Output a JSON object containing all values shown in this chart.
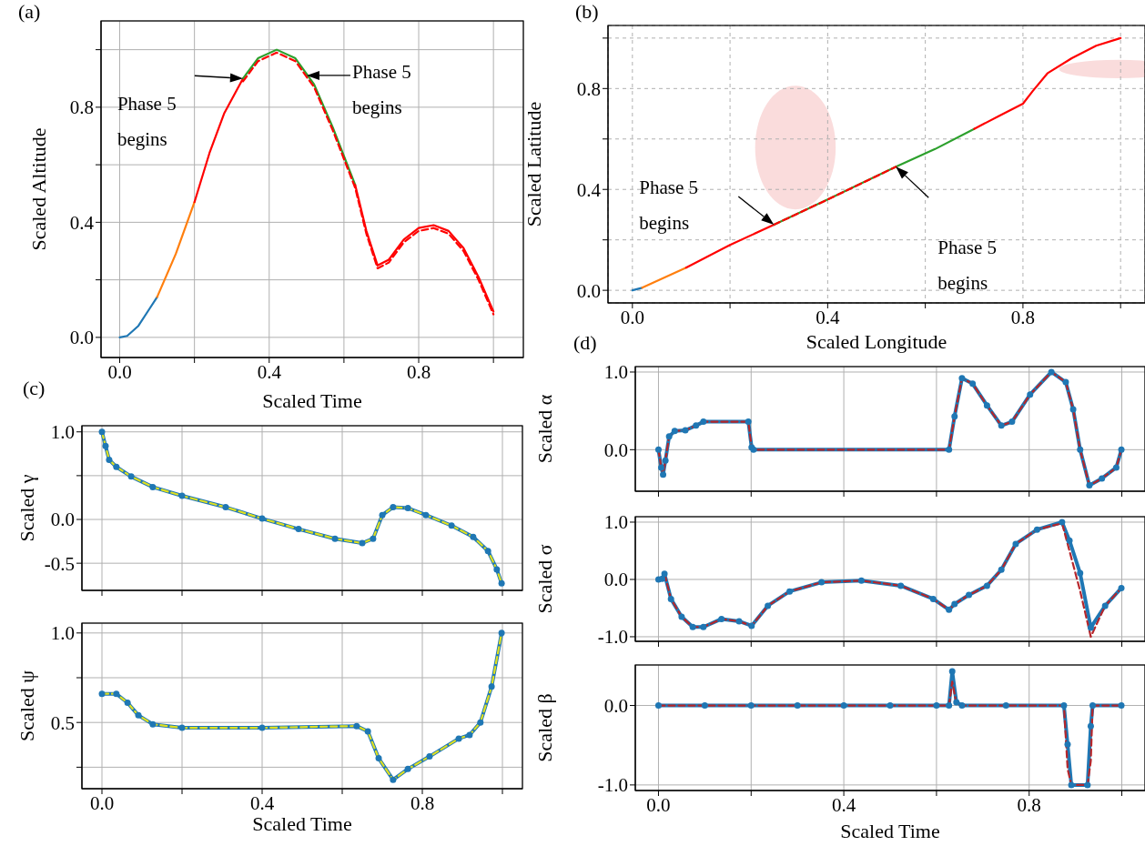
{
  "chart_data": [
    {
      "type": "line",
      "title": "(a)",
      "xlabel": "Scaled Time",
      "ylabel": "Scaled Altitude",
      "xlim": [
        -0.05,
        1.08
      ],
      "ylim": [
        -0.07,
        1.1
      ],
      "xticks": [
        {
          "value": 0,
          "label": "0.0"
        },
        {
          "value": 0.2,
          "label": null
        },
        {
          "value": 0.4,
          "label": "0.4"
        },
        {
          "value": 0.6,
          "label": null
        },
        {
          "value": 0.8,
          "label": "0.8"
        },
        {
          "value": 1,
          "label": null
        }
      ],
      "yticks": [
        {
          "value": 0,
          "label": "0.0"
        },
        {
          "value": 0.2,
          "label": null
        },
        {
          "value": 0.4,
          "label": "0.4"
        },
        {
          "value": 0.6,
          "label": null
        },
        {
          "value": 0.8,
          "label": "0.8"
        },
        {
          "value": 1,
          "label": null
        }
      ],
      "grid": true,
      "annotations": [
        "Phase 5 begins",
        "Phase 5 begins"
      ],
      "series": [
        {
          "color": "#1f77b4",
          "x": [
            0,
            0.02,
            0.05,
            0.08,
            0.1
          ],
          "values": [
            0,
            0.005,
            0.04,
            0.1,
            0.14
          ]
        },
        {
          "color": "#ff7f0e",
          "x": [
            0.1,
            0.15,
            0.2
          ],
          "values": [
            0.14,
            0.29,
            0.47
          ]
        },
        {
          "color": "#ff0000",
          "x": [
            0.2,
            0.24,
            0.28,
            0.33
          ],
          "values": [
            0.47,
            0.64,
            0.78,
            0.9
          ]
        },
        {
          "color": "#2ca02c",
          "x": [
            0.33,
            0.37,
            0.42,
            0.47,
            0.52,
            0.57,
            0.63
          ],
          "values": [
            0.9,
            0.97,
            1.0,
            0.97,
            0.88,
            0.73,
            0.53
          ]
        },
        {
          "color": "#ff0000",
          "x": [
            0.63,
            0.66,
            0.69,
            0.72,
            0.76,
            0.8,
            0.84,
            0.88,
            0.92,
            0.96,
            1.0
          ],
          "values": [
            0.53,
            0.37,
            0.25,
            0.27,
            0.34,
            0.38,
            0.39,
            0.37,
            0.31,
            0.21,
            0.09
          ]
        },
        {
          "color": "#ff0000",
          "line_style": "dashed",
          "x": [
            0.33,
            0.37,
            0.42,
            0.47,
            0.52,
            0.57,
            0.63,
            0.66,
            0.69,
            0.72,
            0.76,
            0.8,
            0.84,
            0.88,
            0.92,
            0.96,
            1.0
          ],
          "values": [
            0.89,
            0.96,
            0.99,
            0.96,
            0.87,
            0.72,
            0.52,
            0.36,
            0.24,
            0.26,
            0.33,
            0.37,
            0.38,
            0.36,
            0.3,
            0.2,
            0.08
          ]
        }
      ]
    },
    {
      "type": "line",
      "title": "(b)",
      "xlabel": "Scaled Longitude",
      "ylabel": "Scaled Latitude",
      "xlim": [
        -0.05,
        1.05
      ],
      "ylim": [
        -0.05,
        1.05
      ],
      "xticks": [
        {
          "value": 0,
          "label": "0.0"
        },
        {
          "value": 0.2,
          "label": null
        },
        {
          "value": 0.4,
          "label": "0.4"
        },
        {
          "value": 0.6,
          "label": null
        },
        {
          "value": 0.8,
          "label": "0.8"
        },
        {
          "value": 1,
          "label": null
        }
      ],
      "yticks": [
        {
          "value": 0,
          "label": "0.0"
        },
        {
          "value": 0.2,
          "label": null
        },
        {
          "value": 0.4,
          "label": "0.4"
        },
        {
          "value": 0.6,
          "label": null
        },
        {
          "value": 0.8,
          "label": "0.8"
        },
        {
          "value": 1,
          "label": null
        }
      ],
      "grid": true,
      "annotations": [
        "Phase 5 begins",
        "Phase 5 begins"
      ],
      "series": [
        {
          "color": "#1f77b4",
          "x": [
            0,
            0.02
          ],
          "values": [
            0,
            0.01
          ]
        },
        {
          "color": "#ff7f0e",
          "x": [
            0.02,
            0.11
          ],
          "values": [
            0.01,
            0.09
          ]
        },
        {
          "color": "#ff0000",
          "x": [
            0.11,
            0.2,
            0.29
          ],
          "values": [
            0.09,
            0.18,
            0.26
          ]
        },
        {
          "color": "#2ca02c",
          "x": [
            0.29,
            0.4,
            0.54,
            0.62,
            0.7
          ],
          "values": [
            0.26,
            0.36,
            0.49,
            0.56,
            0.64
          ]
        },
        {
          "color": "#ff0000",
          "line_style": "dashed",
          "x": [
            0.29,
            0.4,
            0.54
          ],
          "values": [
            0.26,
            0.36,
            0.49
          ]
        },
        {
          "color": "#ff0000",
          "x": [
            0.7,
            0.75,
            0.8,
            0.82,
            0.85,
            0.9,
            0.95,
            1.0
          ],
          "values": [
            0.64,
            0.69,
            0.74,
            0.79,
            0.86,
            0.92,
            0.97,
            1.0
          ]
        }
      ]
    },
    {
      "type": "line",
      "title": "(c)",
      "ylabel": "Scaled γ",
      "xlim": [
        -0.05,
        1.05
      ],
      "ylim": [
        -0.81,
        1.07
      ],
      "tick_labels": "y",
      "xticks": [
        {
          "value": 0,
          "label": null
        },
        {
          "value": 0.2,
          "label": null
        },
        {
          "value": 0.4,
          "label": null
        },
        {
          "value": 0.6,
          "label": null
        },
        {
          "value": 0.8,
          "label": null
        },
        {
          "value": 1,
          "label": null
        }
      ],
      "yticks": [
        {
          "value": -0.5,
          "label": "-0.5"
        },
        {
          "value": 0,
          "label": "0.0"
        },
        {
          "value": 0.5,
          "label": null
        },
        {
          "value": 1,
          "label": "1.0"
        }
      ],
      "grid": true,
      "series": [
        {
          "color": "#1f77b4",
          "marker": "circle",
          "x": [
            0,
            0.009,
            0.018,
            0.036,
            0.073,
            0.127,
            0.2,
            0.309,
            0.4,
            0.491,
            0.582,
            0.65,
            0.677,
            0.7,
            0.727,
            0.764,
            0.809,
            0.873,
            0.927,
            0.964,
            0.986,
            0.998
          ],
          "values": [
            1.0,
            0.84,
            0.68,
            0.6,
            0.49,
            0.37,
            0.27,
            0.14,
            0.01,
            -0.11,
            -0.22,
            -0.27,
            -0.22,
            0.05,
            0.14,
            0.13,
            0.05,
            -0.07,
            -0.2,
            -0.36,
            -0.57,
            -0.73
          ]
        },
        {
          "color": "#e0e020",
          "line_style": "dashed",
          "x": [
            0,
            0.009,
            0.018,
            0.036,
            0.073,
            0.127,
            0.2,
            0.309,
            0.4,
            0.491,
            0.582,
            0.65,
            0.677,
            0.7,
            0.727,
            0.764,
            0.809,
            0.873,
            0.927,
            0.964,
            0.986,
            0.998
          ],
          "values": [
            1.0,
            0.84,
            0.68,
            0.6,
            0.49,
            0.37,
            0.27,
            0.14,
            0.01,
            -0.11,
            -0.22,
            -0.27,
            -0.22,
            0.05,
            0.14,
            0.13,
            0.05,
            -0.07,
            -0.2,
            -0.36,
            -0.57,
            -0.73
          ]
        }
      ]
    },
    {
      "type": "line",
      "xlabel": "Scaled Time",
      "ylabel": "Scaled ψ",
      "xlim": [
        -0.05,
        1.05
      ],
      "ylim": [
        0.13,
        1.055
      ],
      "xticks": [
        {
          "value": 0,
          "label": "0.0"
        },
        {
          "value": 0.2,
          "label": null
        },
        {
          "value": 0.4,
          "label": "0.4"
        },
        {
          "value": 0.6,
          "label": null
        },
        {
          "value": 0.8,
          "label": "0.8"
        },
        {
          "value": 1,
          "label": null
        }
      ],
      "yticks": [
        {
          "value": 0.25,
          "label": null
        },
        {
          "value": 0.5,
          "label": "0.5"
        },
        {
          "value": 0.75,
          "label": null
        },
        {
          "value": 1,
          "label": "1.0"
        }
      ],
      "grid": true,
      "series": [
        {
          "color": "#1f77b4",
          "marker": "circle",
          "x": [
            0,
            0.036,
            0.064,
            0.091,
            0.127,
            0.2,
            0.4,
            0.636,
            0.664,
            0.691,
            0.727,
            0.764,
            0.818,
            0.891,
            0.918,
            0.945,
            0.973,
            0.998
          ],
          "values": [
            0.66,
            0.66,
            0.61,
            0.54,
            0.49,
            0.47,
            0.47,
            0.48,
            0.45,
            0.3,
            0.18,
            0.24,
            0.31,
            0.41,
            0.43,
            0.5,
            0.7,
            1.0
          ]
        },
        {
          "color": "#e0e020",
          "line_style": "dashed",
          "x": [
            0,
            0.036,
            0.064,
            0.091,
            0.127,
            0.2,
            0.4,
            0.636,
            0.664,
            0.691,
            0.727,
            0.764,
            0.818,
            0.891,
            0.918,
            0.945,
            0.973,
            0.998
          ],
          "values": [
            0.66,
            0.66,
            0.61,
            0.54,
            0.49,
            0.47,
            0.47,
            0.48,
            0.45,
            0.3,
            0.18,
            0.24,
            0.31,
            0.41,
            0.43,
            0.5,
            0.7,
            1.0
          ]
        }
      ]
    },
    {
      "type": "line",
      "title": "(d)",
      "ylabel": "Scaled α",
      "xlim": [
        -0.05,
        1.05
      ],
      "ylim": [
        -0.535,
        1.07
      ],
      "tick_labels": "y",
      "xticks": [
        {
          "value": 0,
          "label": null
        },
        {
          "value": 0.2,
          "label": null
        },
        {
          "value": 0.4,
          "label": null
        },
        {
          "value": 0.6,
          "label": null
        },
        {
          "value": 0.8,
          "label": null
        },
        {
          "value": 1,
          "label": null
        }
      ],
      "yticks": [
        {
          "value": 0,
          "label": "0.0"
        },
        {
          "value": 1,
          "label": "1.0"
        }
      ],
      "grid": true,
      "series": [
        {
          "color": "#1f77b4",
          "marker": "circle",
          "x": [
            0,
            0.006,
            0.01,
            0.015,
            0.023,
            0.035,
            0.058,
            0.081,
            0.097,
            0.194,
            0.201,
            0.205,
            0.627,
            0.639,
            0.655,
            0.678,
            0.709,
            0.74,
            0.763,
            0.802,
            0.848,
            0.879,
            0.895,
            0.91,
            0.93,
            0.957,
            0.988,
            0.999
          ],
          "values": [
            0,
            -0.23,
            -0.32,
            -0.14,
            0.17,
            0.24,
            0.25,
            0.31,
            0.36,
            0.36,
            0.03,
            0,
            0,
            0.43,
            0.92,
            0.85,
            0.57,
            0.31,
            0.36,
            0.71,
            1.0,
            0.87,
            0.52,
            0.0,
            -0.46,
            -0.37,
            -0.23,
            0.0
          ]
        },
        {
          "color": "#b5262b",
          "line_style": "dashed",
          "x": [
            0,
            0.006,
            0.01,
            0.015,
            0.023,
            0.035,
            0.058,
            0.081,
            0.097,
            0.194,
            0.201,
            0.205,
            0.627,
            0.639,
            0.655,
            0.678,
            0.709,
            0.74,
            0.763,
            0.802,
            0.848,
            0.879,
            0.895,
            0.91,
            0.93,
            0.957,
            0.988,
            0.999
          ],
          "values": [
            0,
            -0.23,
            -0.32,
            -0.14,
            0.17,
            0.24,
            0.25,
            0.31,
            0.36,
            0.36,
            0.03,
            0,
            0,
            0.43,
            0.92,
            0.85,
            0.57,
            0.31,
            0.36,
            0.71,
            1.0,
            0.87,
            0.52,
            0.0,
            -0.46,
            -0.37,
            -0.23,
            0.0
          ]
        }
      ]
    },
    {
      "type": "line",
      "ylabel": "Scaled σ",
      "xlim": [
        -0.05,
        1.05
      ],
      "ylim": [
        -1.08,
        1.095
      ],
      "tick_labels": "y",
      "xticks": [
        {
          "value": 0,
          "label": null
        },
        {
          "value": 0.2,
          "label": null
        },
        {
          "value": 0.4,
          "label": null
        },
        {
          "value": 0.6,
          "label": null
        },
        {
          "value": 0.8,
          "label": null
        },
        {
          "value": 1,
          "label": null
        }
      ],
      "yticks": [
        {
          "value": -1,
          "label": "-1.0"
        },
        {
          "value": 0,
          "label": "0.0"
        },
        {
          "value": 1,
          "label": "1.0"
        }
      ],
      "grid": true,
      "series": [
        {
          "color": "#1f77b4",
          "marker": "circle",
          "x": [
            0,
            0.008,
            0.013,
            0.027,
            0.05,
            0.074,
            0.097,
            0.136,
            0.174,
            0.201,
            0.236,
            0.283,
            0.352,
            0.438,
            0.523,
            0.593,
            0.627,
            0.639,
            0.67,
            0.709,
            0.74,
            0.771,
            0.817,
            0.871,
            0.887,
            0.91,
            0.933,
            0.964,
            0.999
          ],
          "values": [
            0,
            0.01,
            0.1,
            -0.34,
            -0.65,
            -0.83,
            -0.83,
            -0.69,
            -0.73,
            -0.81,
            -0.46,
            -0.21,
            -0.05,
            -0.02,
            -0.11,
            -0.34,
            -0.53,
            -0.43,
            -0.27,
            -0.11,
            0.17,
            0.62,
            0.87,
            1.0,
            0.68,
            0.11,
            -0.84,
            -0.46,
            -0.15
          ]
        },
        {
          "color": "#b5262b",
          "line_style": "dashed",
          "x": [
            0,
            0.008,
            0.013,
            0.027,
            0.05,
            0.074,
            0.097,
            0.136,
            0.174,
            0.201,
            0.236,
            0.283,
            0.352,
            0.438,
            0.523,
            0.593,
            0.627,
            0.639,
            0.67,
            0.709,
            0.74,
            0.771,
            0.817,
            0.871,
            0.887,
            0.91,
            0.933,
            0.964,
            0.999
          ],
          "values": [
            0,
            0.01,
            0.1,
            -0.34,
            -0.65,
            -0.83,
            -0.83,
            -0.69,
            -0.73,
            -0.81,
            -0.46,
            -0.21,
            -0.05,
            -0.02,
            -0.11,
            -0.34,
            -0.53,
            -0.43,
            -0.27,
            -0.11,
            0.17,
            0.62,
            0.87,
            0.98,
            0.5,
            -0.2,
            -1.0,
            -0.46,
            -0.15
          ]
        }
      ]
    },
    {
      "type": "line",
      "xlabel": "Scaled Time",
      "ylabel": "Scaled β",
      "xlim": [
        -0.05,
        1.05
      ],
      "ylim": [
        -1.07,
        0.51
      ],
      "xticks": [
        {
          "value": 0,
          "label": "0.0"
        },
        {
          "value": 0.2,
          "label": null
        },
        {
          "value": 0.4,
          "label": "0.4"
        },
        {
          "value": 0.6,
          "label": null
        },
        {
          "value": 0.8,
          "label": "0.8"
        },
        {
          "value": 1,
          "label": null
        }
      ],
      "yticks": [
        {
          "value": -1,
          "label": "-1.0"
        },
        {
          "value": 0,
          "label": "0.0"
        }
      ],
      "grid": true,
      "series": [
        {
          "color": "#1f77b4",
          "marker": "circle",
          "x": [
            0,
            0.1,
            0.2,
            0.3,
            0.4,
            0.5,
            0.6,
            0.627,
            0.634,
            0.643,
            0.655,
            0.75,
            0.875,
            0.883,
            0.891,
            0.926,
            0.933,
            0.937,
            0.999
          ],
          "values": [
            0,
            0,
            0,
            0,
            0,
            0,
            0,
            0,
            0.43,
            0.04,
            0,
            0,
            0,
            -0.49,
            -1,
            -1,
            -0.26,
            0,
            0
          ]
        },
        {
          "color": "#b5262b",
          "line_style": "dashed",
          "x": [
            0,
            0.1,
            0.2,
            0.3,
            0.4,
            0.5,
            0.6,
            0.627,
            0.634,
            0.643,
            0.655,
            0.75,
            0.875,
            0.883,
            0.891,
            0.926,
            0.933,
            0.937,
            0.999
          ],
          "values": [
            0,
            0,
            0,
            0,
            0,
            0,
            0,
            0,
            0.3,
            0.02,
            0,
            0,
            0,
            -0.8,
            -1,
            -1,
            -0.7,
            0,
            0
          ]
        }
      ]
    }
  ]
}
